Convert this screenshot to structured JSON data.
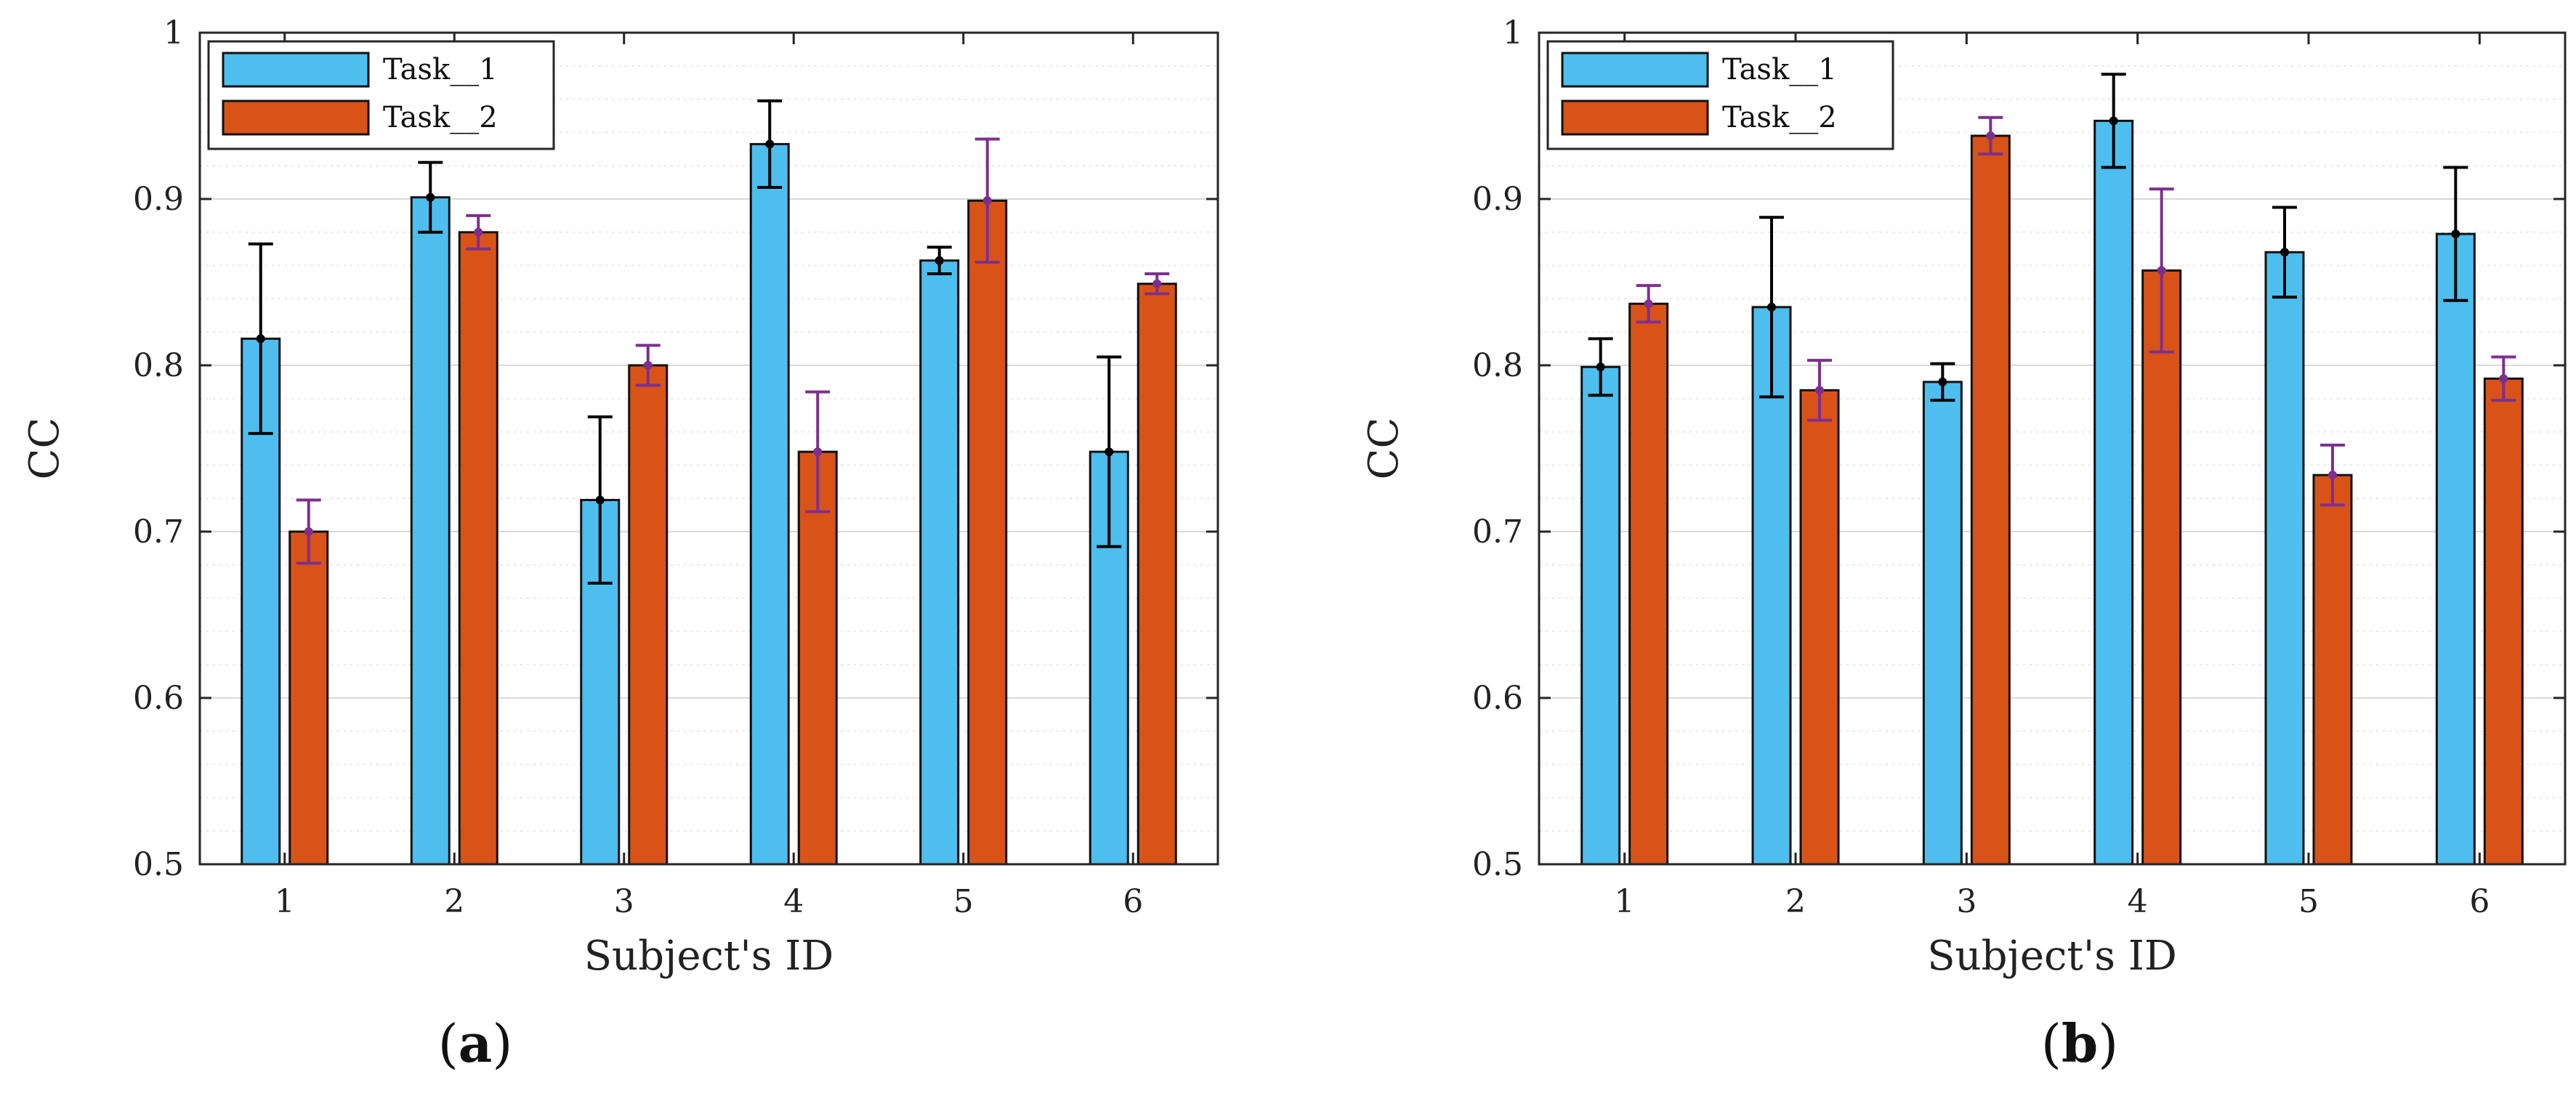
{
  "figure_labels": [
    {
      "open": "(",
      "letter": "a",
      "close": ")"
    },
    {
      "open": "(",
      "letter": "b",
      "close": ")"
    }
  ],
  "colors": {
    "task1_fill": "#4DBEEE",
    "task2_fill": "#D95319",
    "task1_error": "#000000",
    "task2_error": "#7E2F8E",
    "grid": "#d9d9d9",
    "axis": "#262626"
  },
  "chart_data": [
    {
      "type": "bar",
      "panel": "(a)",
      "title": "",
      "xlabel": "Subject's ID",
      "ylabel": "CC",
      "ylim": [
        0.5,
        1.0
      ],
      "yticks": [
        "0.5",
        "0.6",
        "0.7",
        "0.8",
        "0.9",
        "1"
      ],
      "categories": [
        "1",
        "2",
        "3",
        "4",
        "5",
        "6"
      ],
      "legend_position": "top-left",
      "grid": true,
      "series": [
        {
          "name": "Task__1",
          "values": [
            0.816,
            0.901,
            0.719,
            0.933,
            0.863,
            0.748
          ],
          "errors": [
            0.057,
            0.021,
            0.05,
            0.026,
            0.008,
            0.057
          ]
        },
        {
          "name": "Task__2",
          "values": [
            0.7,
            0.88,
            0.8,
            0.748,
            0.899,
            0.849
          ],
          "errors": [
            0.019,
            0.01,
            0.012,
            0.036,
            0.037,
            0.006
          ]
        }
      ]
    },
    {
      "type": "bar",
      "panel": "(b)",
      "title": "",
      "xlabel": "Subject's ID",
      "ylabel": "CC",
      "ylim": [
        0.5,
        1.0
      ],
      "yticks": [
        "0.5",
        "0.6",
        "0.7",
        "0.8",
        "0.9",
        "1"
      ],
      "categories": [
        "1",
        "2",
        "3",
        "4",
        "5",
        "6"
      ],
      "legend_position": "top-left",
      "grid": true,
      "series": [
        {
          "name": "Task__1",
          "values": [
            0.799,
            0.835,
            0.79,
            0.947,
            0.868,
            0.879
          ],
          "errors": [
            0.017,
            0.054,
            0.011,
            0.028,
            0.027,
            0.04
          ]
        },
        {
          "name": "Task__2",
          "values": [
            0.837,
            0.785,
            0.938,
            0.857,
            0.734,
            0.792
          ],
          "errors": [
            0.011,
            0.018,
            0.011,
            0.049,
            0.018,
            0.013
          ]
        }
      ]
    }
  ]
}
